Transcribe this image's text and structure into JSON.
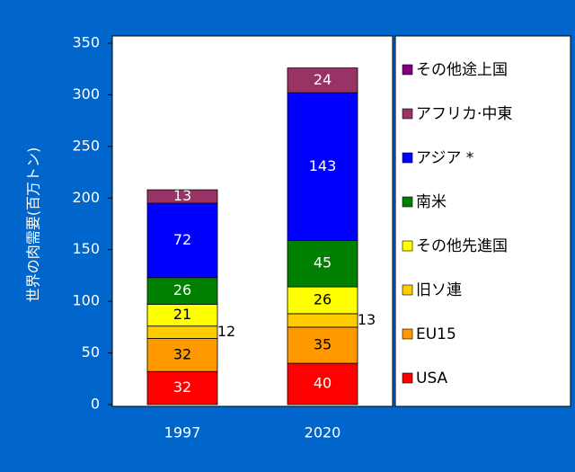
{
  "chart_data": {
    "type": "stacked_bar",
    "y_label": "世界の肉需要(百万トン)",
    "categories": [
      "1997",
      "2020"
    ],
    "series": [
      {
        "name": "USA",
        "color": "#ff0000",
        "label_color": "#ffffff",
        "values": [
          32,
          40
        ]
      },
      {
        "name": "EU15",
        "color": "#ff9900",
        "label_color": "#000000",
        "values": [
          32,
          35
        ]
      },
      {
        "name": "旧ソ連",
        "color": "#ffcc00",
        "label_color": "#000000",
        "values": [
          12,
          13
        ]
      },
      {
        "name": "その他先進国",
        "color": "#ffff00",
        "label_color": "#000000",
        "values": [
          21,
          26
        ]
      },
      {
        "name": "南米",
        "color": "#008000",
        "label_color": "#ffffff",
        "values": [
          26,
          45
        ]
      },
      {
        "name": "アジア *",
        "color": "#0000ff",
        "label_color": "#ffffff",
        "values": [
          72,
          143
        ]
      },
      {
        "name": "アフリカ·中東",
        "color": "#993366",
        "label_color": "#ffffff",
        "values": [
          13,
          24
        ]
      },
      {
        "name": "その他途上国",
        "color": "#800080",
        "label_color": "#ffffff",
        "values": [
          null,
          null
        ]
      }
    ],
    "ylim": [
      0,
      350
    ],
    "yticks": [
      0,
      50,
      100,
      150,
      200,
      250,
      300,
      350
    ],
    "legend": "right"
  }
}
